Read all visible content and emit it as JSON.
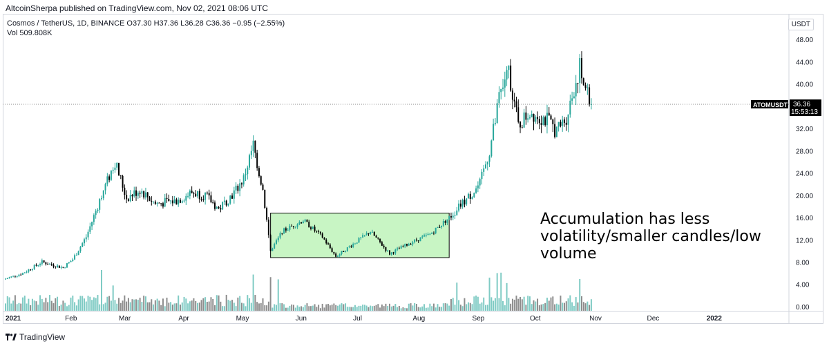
{
  "publisher": "AltcoinSherpa published on TradingView.com, Nov 02, 2021 08:06 UTC",
  "legend": {
    "symbol": "Cosmos / TetherUS, 1D, BINANCE",
    "open": "O37.30",
    "high": "H37.36",
    "low": "L36.28",
    "close": "C36.36",
    "change": "−0.95 (−2.55%)",
    "volume": "Vol  509.808K"
  },
  "currency_button": "USDT",
  "price_label": {
    "ticker": "ATOMUSDT",
    "price": "36.36",
    "countdown": "15:53:13"
  },
  "footer_brand": "TradingView",
  "annotation": [
    "Accumulation has less",
    "volatility/smaller candles/low",
    "volume"
  ],
  "colors": {
    "up": "#26a69a",
    "down": "#000000",
    "box_fill": "#c8f5c4",
    "volume_up": "#7fcbc4",
    "volume_down": "#8d8d8d"
  },
  "chart_data": {
    "type": "candlestick",
    "xlabels": [
      "2021",
      "Feb",
      "Mar",
      "Apr",
      "May",
      "Jun",
      "Jul",
      "Aug",
      "Sep",
      "Oct",
      "Nov",
      "Dec",
      "2022"
    ],
    "yticks": [
      0,
      4,
      8,
      12,
      16,
      20,
      24,
      28,
      32,
      36,
      40,
      44,
      48
    ],
    "ylim": [
      -1,
      51
    ],
    "last_price": 36.36,
    "accumulation_zone": {
      "start": "May 19 2021",
      "end": "Aug 20 2021",
      "low": 8.8,
      "high": 16.8
    },
    "price_path": [
      [
        "Jan 01",
        5.0
      ],
      [
        "Jan 10",
        6.0
      ],
      [
        "Jan 20",
        8.0
      ],
      [
        "Jan 31",
        7.0
      ],
      [
        "Feb 05",
        8.5
      ],
      [
        "Feb 12",
        12.5
      ],
      [
        "Feb 20",
        20.0
      ],
      [
        "Feb 27",
        26.0
      ],
      [
        "Mar 05",
        19.5
      ],
      [
        "Mar 12",
        21.0
      ],
      [
        "Mar 20",
        18.5
      ],
      [
        "Mar 31",
        19.0
      ],
      [
        "Apr 08",
        20.5
      ],
      [
        "Apr 15",
        20.0
      ],
      [
        "Apr 22",
        17.5
      ],
      [
        "Apr 30",
        20.5
      ],
      [
        "May 05",
        23.0
      ],
      [
        "May 10",
        29.0
      ],
      [
        "May 15",
        21.0
      ],
      [
        "May 19",
        10.0
      ],
      [
        "May 25",
        13.5
      ],
      [
        "Jun 05",
        15.5
      ],
      [
        "Jun 15",
        12.5
      ],
      [
        "Jun 22",
        9.0
      ],
      [
        "Jun 30",
        11.0
      ],
      [
        "Jul 10",
        13.5
      ],
      [
        "Jul 20",
        9.5
      ],
      [
        "Jul 31",
        11.5
      ],
      [
        "Aug 10",
        13.0
      ],
      [
        "Aug 20",
        16.0
      ],
      [
        "Aug 31",
        20.0
      ],
      [
        "Sep 05",
        22.0
      ],
      [
        "Sep 10",
        28.0
      ],
      [
        "Sep 15",
        37.0
      ],
      [
        "Sep 20",
        42.5
      ],
      [
        "Sep 25",
        32.5
      ],
      [
        "Oct 01",
        35.0
      ],
      [
        "Oct 10",
        33.5
      ],
      [
        "Oct 15",
        31.5
      ],
      [
        "Oct 20",
        34.0
      ],
      [
        "Oct 27",
        43.0
      ],
      [
        "Oct 31",
        38.0
      ],
      [
        "Nov 02",
        36.36
      ]
    ]
  }
}
